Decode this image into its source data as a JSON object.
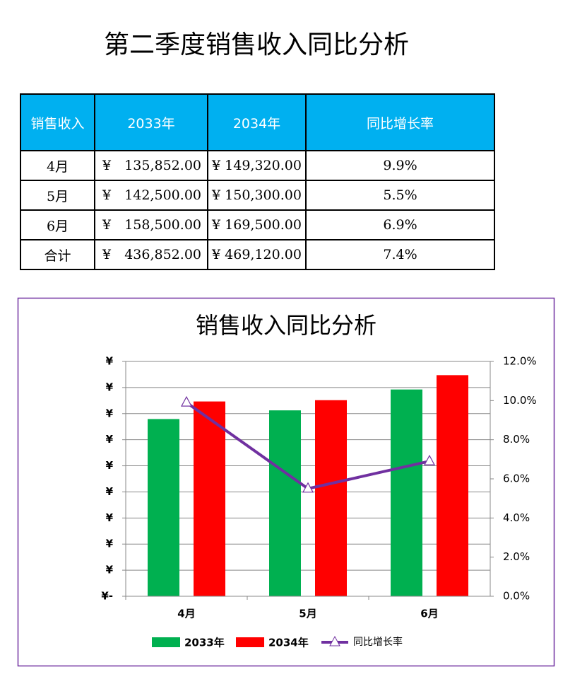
{
  "title": "第二季度销售收入同比分析",
  "table": {
    "header": [
      "销售收入",
      "2033年",
      "2034年",
      "同比增长率"
    ],
    "rows": [
      [
        "4月",
        {
          "symbol": "¥",
          "amount": "135,852.00"
        },
        "¥ 149,320.00",
        "9.9%"
      ],
      [
        "5月",
        {
          "symbol": "¥",
          "amount": "142,500.00"
        },
        "¥ 150,300.00",
        "5.5%"
      ],
      [
        "6月",
        {
          "symbol": "¥",
          "amount": "158,500.00"
        },
        "¥ 169,500.00",
        "6.9%"
      ],
      [
        "合计",
        {
          "symbol": "¥",
          "amount": "436,852.00"
        },
        "¥ 469,120.00",
        "7.4%"
      ]
    ]
  },
  "chart_data": {
    "type": "bar-line",
    "title": "销售收入同比分析",
    "categories": [
      "4月",
      "5月",
      "6月"
    ],
    "series": [
      {
        "name": "2033年",
        "color": "#00b050",
        "values": [
          135852,
          142500,
          158500
        ]
      },
      {
        "name": "2034年",
        "color": "#ff0000",
        "values": [
          149320,
          150300,
          169500
        ]
      },
      {
        "name": "同比增长率",
        "color": "#7030a0",
        "values": [
          9.9,
          5.5,
          6.9
        ],
        "axis": "y2"
      }
    ],
    "ylim": [
      0,
      180000
    ],
    "yticks": [
      {
        "value": 0,
        "label": "¥-"
      },
      {
        "value": 20000,
        "label": "¥"
      },
      {
        "value": 40000,
        "label": "¥"
      },
      {
        "value": 60000,
        "label": "¥"
      },
      {
        "value": 80000,
        "label": "¥"
      },
      {
        "value": 100000,
        "label": "¥"
      },
      {
        "value": 120000,
        "label": "¥"
      },
      {
        "value": 140000,
        "label": "¥"
      },
      {
        "value": 160000,
        "label": "¥"
      },
      {
        "value": 180000,
        "label": "¥"
      }
    ],
    "y2lim": [
      0,
      12
    ],
    "y2ticks": [
      {
        "value": 0,
        "label": "0.0%"
      },
      {
        "value": 2,
        "label": "2.0%"
      },
      {
        "value": 4,
        "label": "4.0%"
      },
      {
        "value": 6,
        "label": "6.0%"
      },
      {
        "value": 8,
        "label": "8.0%"
      },
      {
        "value": 10,
        "label": "10.0%"
      },
      {
        "value": 12,
        "label": "12.0%"
      }
    ],
    "grid": true
  }
}
